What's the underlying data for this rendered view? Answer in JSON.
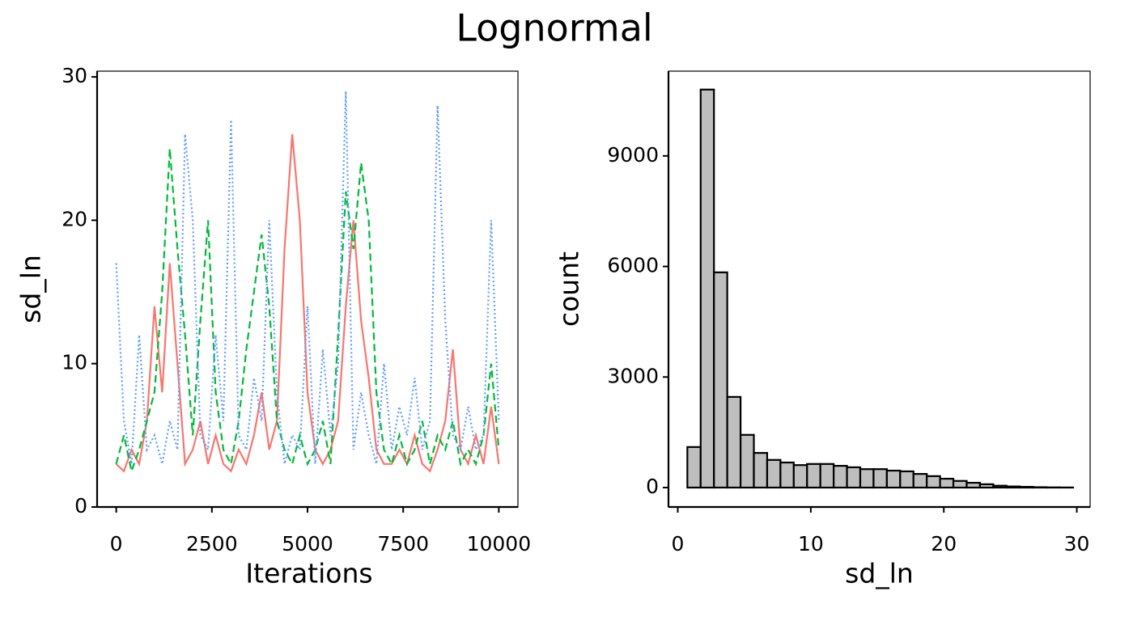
{
  "title": "Lognormal",
  "chart_data": [
    {
      "type": "line",
      "xlabel": "Iterations",
      "ylabel": "sd_ln",
      "x": [
        0,
        200,
        400,
        600,
        800,
        1000,
        1200,
        1400,
        1600,
        1800,
        2000,
        2200,
        2400,
        2600,
        2800,
        3000,
        3200,
        3400,
        3600,
        3800,
        4000,
        4200,
        4400,
        4600,
        4800,
        5000,
        5200,
        5400,
        5600,
        5800,
        6000,
        6200,
        6400,
        6600,
        6800,
        7000,
        7200,
        7400,
        7600,
        7800,
        8000,
        8200,
        8400,
        8600,
        8800,
        9000,
        9200,
        9400,
        9600,
        9800,
        10000
      ],
      "series": [
        {
          "color": "#F8766D",
          "dash": "solid",
          "values": [
            3,
            2.5,
            4,
            3,
            6,
            14,
            8,
            17,
            10,
            3,
            4,
            6,
            3,
            5,
            3,
            2.5,
            4,
            3,
            5,
            8,
            4,
            6,
            18,
            26,
            20,
            8,
            4,
            3,
            4,
            6,
            14,
            20,
            13,
            9,
            4,
            3,
            3,
            4,
            3,
            5,
            3,
            2.5,
            4,
            6,
            11,
            4,
            3,
            5,
            3,
            7,
            3
          ]
        },
        {
          "color": "#00BA38",
          "dash": "dashed",
          "values": [
            3,
            5,
            2.5,
            4,
            6,
            8,
            15,
            25,
            18,
            12,
            5,
            13,
            20,
            8,
            4,
            3,
            6,
            11,
            15,
            19,
            14,
            6,
            4,
            3,
            5,
            3,
            4,
            6,
            3,
            12,
            22,
            18,
            24,
            20,
            8,
            4,
            3,
            5,
            3,
            4,
            6,
            3,
            5,
            4,
            6,
            3,
            4,
            3,
            5,
            10,
            4
          ]
        },
        {
          "color": "#619CFF",
          "dash": "dotted",
          "values": [
            17,
            6,
            3,
            12,
            4,
            5,
            3,
            6,
            4,
            26,
            20,
            5,
            4,
            12,
            6,
            27,
            5,
            4,
            9,
            6,
            20,
            8,
            3,
            5,
            4,
            14,
            3,
            11,
            5,
            10,
            29,
            4,
            8,
            5,
            3,
            10,
            4,
            7,
            5,
            9,
            4,
            6,
            28,
            13,
            5,
            4,
            7,
            4,
            5,
            20,
            6
          ]
        }
      ],
      "xlim": [
        -500,
        10500
      ],
      "ylim": [
        0,
        30.4
      ],
      "xticks": [
        0,
        2500,
        5000,
        7500,
        10000
      ],
      "yticks": [
        0,
        10,
        20,
        30
      ]
    },
    {
      "type": "histogram",
      "xlabel": "sd_ln",
      "ylabel": "count",
      "color": "#bebebe",
      "bins": [
        0.72,
        1.72,
        2.72,
        3.72,
        4.72,
        5.72,
        6.72,
        7.72,
        8.72,
        9.72,
        10.72,
        11.72,
        12.72,
        13.72,
        14.72,
        15.72,
        16.72,
        17.72,
        18.72,
        19.72,
        20.72,
        21.72,
        22.72,
        23.72,
        24.72,
        25.72,
        26.72,
        27.72,
        28.72,
        29.72
      ],
      "values": [
        1100,
        10800,
        5840,
        2460,
        1430,
        940,
        750,
        680,
        610,
        640,
        640,
        590,
        550,
        500,
        500,
        460,
        440,
        370,
        310,
        240,
        180,
        130,
        90,
        50,
        30,
        20,
        10,
        5,
        3
      ],
      "xlim": [
        -0.7,
        31
      ],
      "ylim": [
        -527,
        11300
      ],
      "xticks": [
        0,
        10,
        20,
        30
      ],
      "yticks": [
        0,
        3000,
        6000,
        9000
      ]
    }
  ]
}
